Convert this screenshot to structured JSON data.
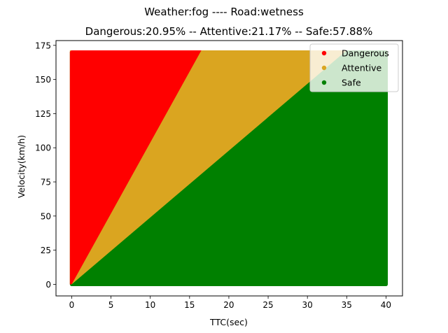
{
  "chart_data": {
    "type": "scatter",
    "title": "Weather:fog ---- Road:wetness",
    "subtitle": "Dangerous:20.95% -- Attentive:21.17% -- Safe:57.88%",
    "xlabel": "TTC(sec)",
    "ylabel": "Velocity(km/h)",
    "xlim": [
      -2,
      42.1
    ],
    "ylim": [
      -8.5,
      178.5
    ],
    "x_ticks": [
      0,
      5,
      10,
      15,
      20,
      25,
      30,
      35,
      40
    ],
    "y_ticks": [
      0,
      25,
      50,
      75,
      100,
      125,
      150,
      175
    ],
    "grid": false,
    "legend_position": "top-right",
    "domain": {
      "ttc": [
        0,
        40
      ],
      "velocity": [
        0,
        170
      ]
    },
    "series": [
      {
        "name": "Dangerous",
        "color": "#ff0000",
        "boundary": {
          "ttc": [
            0,
            16.5
          ],
          "velocity": [
            0,
            170
          ]
        }
      },
      {
        "name": "Attentive",
        "color": "#daa520",
        "boundary": {
          "ttc": [
            0,
            35
          ],
          "velocity": [
            0,
            170
          ]
        }
      },
      {
        "name": "Safe",
        "color": "#008000",
        "boundary": null
      }
    ]
  }
}
